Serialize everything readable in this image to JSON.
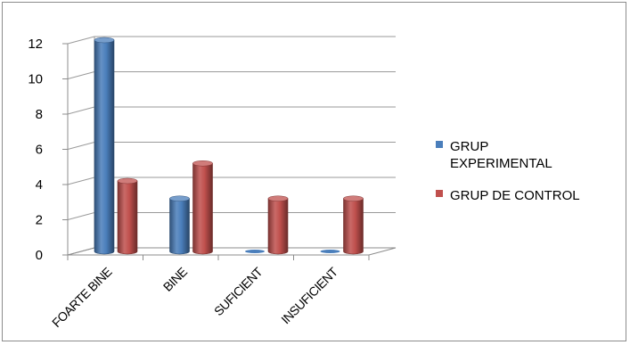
{
  "chart_data": {
    "type": "bar",
    "style": "3d-cylinder",
    "categories": [
      "FOARTE BINE",
      "BINE",
      "SUFICIENT",
      "INSUFICIENT"
    ],
    "series": [
      {
        "name": "GRUP EXPERIMENTAL",
        "name_lines": [
          "GRUP",
          "EXPERIMENTAL"
        ],
        "color": "#4a7ebb",
        "values": [
          12,
          3,
          0,
          0
        ]
      },
      {
        "name": "GRUP DE CONTROL",
        "name_lines": [
          "GRUP DE CONTROL"
        ],
        "color": "#c0504d",
        "values": [
          4,
          5,
          3,
          3
        ]
      }
    ],
    "ylim": [
      0,
      12
    ],
    "yticks": [
      0,
      2,
      4,
      6,
      8,
      10,
      12
    ],
    "grid": true,
    "legend_position": "right"
  }
}
